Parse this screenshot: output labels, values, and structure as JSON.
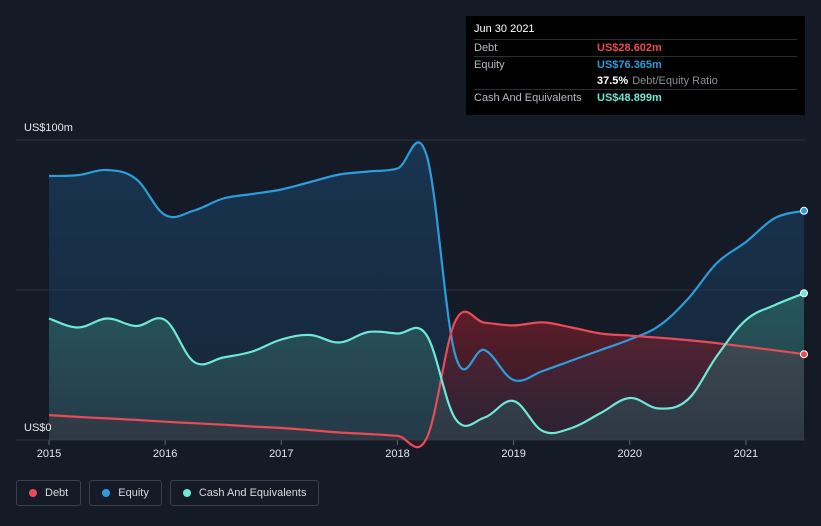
{
  "tooltip": {
    "date": "Jun 30 2021",
    "rows": [
      {
        "label": "Debt",
        "value": "US$28.602m",
        "color": "#e64b57"
      },
      {
        "label": "Equity",
        "value": "US$76.365m",
        "color": "#2d9cdb"
      },
      {
        "label": "",
        "value": "37.5%",
        "sub": "Debt/Equity Ratio",
        "color": "#ffffff"
      },
      {
        "label": "Cash And Equivalents",
        "value": "US$48.899m",
        "color": "#6ee7d6"
      }
    ]
  },
  "legend": [
    {
      "label": "Debt",
      "color": "#e64b57"
    },
    {
      "label": "Equity",
      "color": "#2d9cdb"
    },
    {
      "label": "Cash And Equivalents",
      "color": "#6ee7d6"
    }
  ],
  "chart_data": {
    "type": "area",
    "ylabel_top": "US$100m",
    "ylabel_bottom": "US$0",
    "ylim": [
      0,
      100
    ],
    "xlim": [
      2015.0,
      2021.5
    ],
    "xticks": [
      "2015",
      "2016",
      "2017",
      "2018",
      "2019",
      "2020",
      "2021"
    ],
    "grid": true,
    "legend_position": "bottom-left",
    "series": [
      {
        "name": "Equity",
        "color": "#2d9cdb",
        "x": [
          2015.0,
          2015.25,
          2015.5,
          2015.75,
          2016.0,
          2016.25,
          2016.5,
          2016.75,
          2017.0,
          2017.25,
          2017.5,
          2017.75,
          2018.0,
          2018.25,
          2018.5,
          2018.75,
          2019.0,
          2019.25,
          2019.5,
          2019.75,
          2020.0,
          2020.25,
          2020.5,
          2020.75,
          2021.0,
          2021.25,
          2021.5
        ],
        "values": [
          88,
          88.3,
          90,
          87,
          75,
          76.5,
          80.5,
          82,
          83.5,
          86,
          88.5,
          89.5,
          90.5,
          95,
          28,
          30,
          20,
          23,
          26.5,
          30,
          33.5,
          38,
          47,
          59,
          66,
          74,
          76.4
        ]
      },
      {
        "name": "Debt",
        "color": "#e64b57",
        "x": [
          2015.0,
          2015.25,
          2015.5,
          2015.75,
          2016.0,
          2016.25,
          2016.5,
          2016.75,
          2017.0,
          2017.25,
          2017.5,
          2017.75,
          2018.0,
          2018.25,
          2018.5,
          2018.75,
          2019.0,
          2019.25,
          2019.5,
          2019.75,
          2020.0,
          2020.25,
          2020.5,
          2020.75,
          2021.0,
          2021.25,
          2021.5
        ],
        "values": [
          8.3,
          7.7,
          7.2,
          6.7,
          6.1,
          5.6,
          5.1,
          4.5,
          4.0,
          3.3,
          2.5,
          2.0,
          1.4,
          0.5,
          39.8,
          39.1,
          38.2,
          39.2,
          37.5,
          35.5,
          34.8,
          34.1,
          33.3,
          32.3,
          31.1,
          29.9,
          28.6
        ]
      },
      {
        "name": "Cash And Equivalents",
        "color": "#6ee7d6",
        "x": [
          2015.0,
          2015.25,
          2015.5,
          2015.75,
          2016.0,
          2016.25,
          2016.5,
          2016.75,
          2017.0,
          2017.25,
          2017.5,
          2017.75,
          2018.0,
          2018.25,
          2018.5,
          2018.75,
          2019.0,
          2019.25,
          2019.5,
          2019.75,
          2020.0,
          2020.25,
          2020.5,
          2020.75,
          2021.0,
          2021.25,
          2021.5
        ],
        "values": [
          40.5,
          37.5,
          40.5,
          38,
          40,
          26,
          27.5,
          29.5,
          33.5,
          35,
          32.5,
          36,
          35.5,
          35,
          7,
          7.5,
          13,
          3,
          4,
          9,
          14,
          10.5,
          13.5,
          28,
          40,
          45,
          48.9
        ]
      }
    ]
  }
}
